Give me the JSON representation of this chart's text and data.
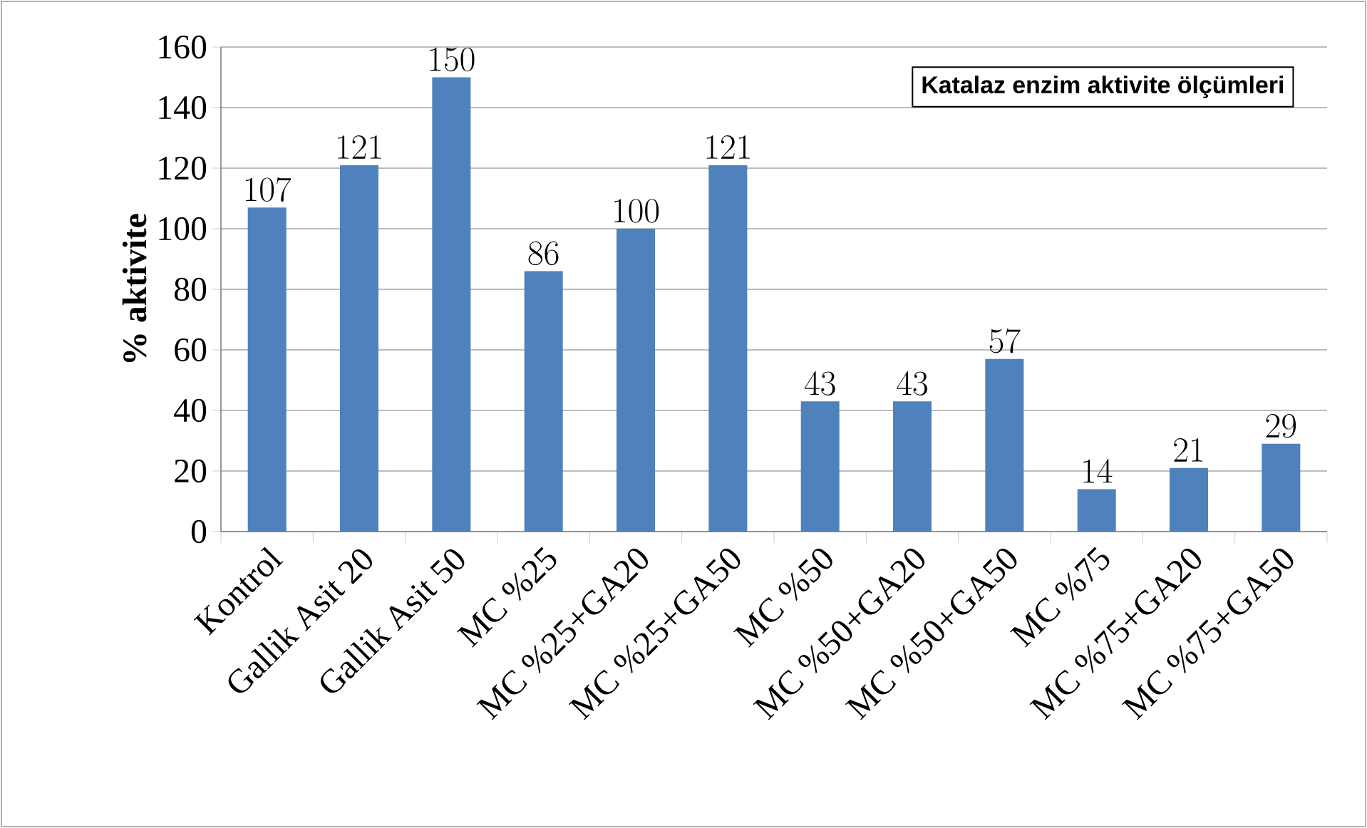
{
  "chart_data": {
    "type": "bar",
    "title": "Katalaz enzim aktivite ölçümleri",
    "ylabel": "% aktivite",
    "categories": [
      "Kontrol",
      "Gallik Asit 20",
      "Gallik Asit 50",
      "MC %25",
      "MC %25+GA20",
      "MC %25+GA50",
      "MC %50",
      "MC %50+GA20",
      "MC %50+GA50",
      "MC %75",
      "MC %75+GA20",
      "MC %75+GA50"
    ],
    "values": [
      107,
      121,
      150,
      86,
      100,
      121,
      43,
      43,
      57,
      14,
      21,
      29
    ],
    "color": "#4f81bd",
    "ylim": [
      0,
      160
    ],
    "yticks": [
      0,
      20,
      40,
      60,
      80,
      100,
      120,
      140,
      160
    ],
    "grid": "y",
    "data_labels": true
  }
}
